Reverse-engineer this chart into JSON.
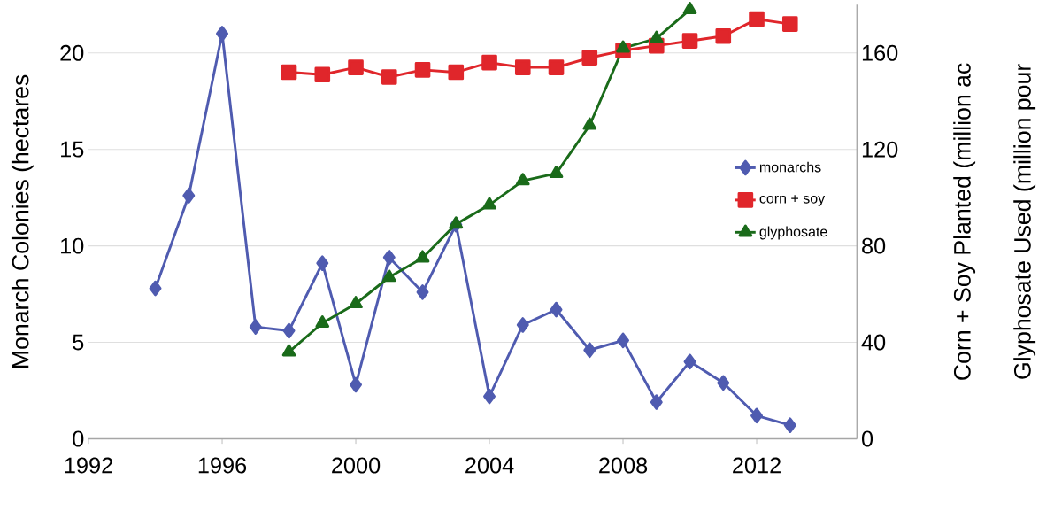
{
  "chart_data": {
    "type": "line",
    "ylabel": "Monarch Colonies (hectares",
    "y2label": "Corn + Soy Planted (million ac",
    "annotations": [
      "Glyphosate Used (million pour"
    ],
    "xlim": [
      1992,
      2015
    ],
    "xticks": [
      1992,
      1996,
      2000,
      2004,
      2008,
      2012
    ],
    "ylim": [
      0,
      22.5
    ],
    "yticks": [
      0,
      5,
      10,
      15,
      20
    ],
    "y2lim": [
      0,
      180
    ],
    "y2ticks": [
      0,
      40,
      80,
      120,
      160
    ],
    "grid": "y",
    "legend": "right",
    "series": [
      {
        "name": "monarchs",
        "color": "#4f5bb0",
        "marker": "diamond",
        "x": [
          1994,
          1995,
          1996,
          1997,
          1998,
          1999,
          2000,
          2001,
          2002,
          2003,
          2004,
          2005,
          2006,
          2007,
          2008,
          2009,
          2010,
          2011,
          2012,
          2013
        ],
        "values": [
          7.8,
          12.6,
          21.0,
          5.8,
          5.6,
          9.1,
          2.8,
          9.4,
          7.6,
          11.1,
          2.2,
          5.9,
          6.7,
          4.6,
          5.1,
          1.9,
          4.0,
          2.9,
          1.2,
          0.7
        ]
      },
      {
        "name": "corn + soy",
        "color": "#e0262b",
        "marker": "square",
        "axis": "y2",
        "x": [
          1998,
          1999,
          2000,
          2001,
          2002,
          2003,
          2004,
          2005,
          2006,
          2007,
          2008,
          2009,
          2010,
          2011,
          2012,
          2013
        ],
        "values": [
          152,
          151,
          154,
          150,
          153,
          152,
          156,
          154,
          154,
          158,
          161,
          163,
          165,
          167,
          174,
          172
        ]
      },
      {
        "name": "glyphosate",
        "color": "#1a6b1a",
        "marker": "triangle",
        "axis": "y2",
        "x": [
          1998,
          1999,
          2000,
          2001,
          2002,
          2003,
          2004,
          2005,
          2006,
          2007,
          2008,
          2009,
          2010
        ],
        "values": [
          36,
          48,
          56,
          67,
          75,
          89,
          97,
          107,
          110,
          130,
          162,
          166,
          178
        ]
      }
    ]
  }
}
